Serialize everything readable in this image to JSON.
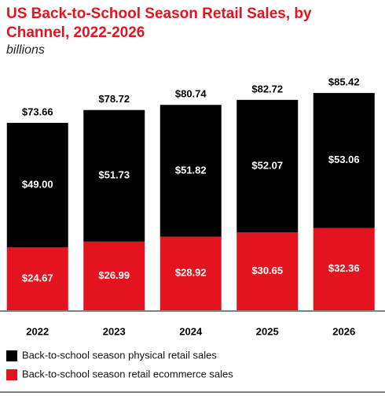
{
  "chart_data": {
    "type": "stacked-bar",
    "title": "US Back-to-School Season Retail Sales, by Channel, 2022-2026",
    "subtitle": "billions",
    "categories": [
      "2022",
      "2023",
      "2024",
      "2025",
      "2026"
    ],
    "series": [
      {
        "name": "Back-to-school season physical retail sales",
        "color": "#000000",
        "values": [
          49.0,
          51.73,
          51.82,
          52.07,
          53.06
        ],
        "value_labels": [
          "$49.00",
          "$51.73",
          "$51.82",
          "$52.07",
          "$53.06"
        ]
      },
      {
        "name": "Back-to-school season retail ecommerce sales",
        "color": "#e3141f",
        "values": [
          24.67,
          26.99,
          28.92,
          30.65,
          32.36
        ],
        "value_labels": [
          "$24.67",
          "$26.99",
          "$28.92",
          "$30.65",
          "$32.36"
        ]
      }
    ],
    "totals": [
      73.66,
      78.72,
      80.74,
      82.72,
      85.42
    ],
    "total_labels": [
      "$73.66",
      "$78.72",
      "$80.74",
      "$82.72",
      "$85.42"
    ]
  }
}
